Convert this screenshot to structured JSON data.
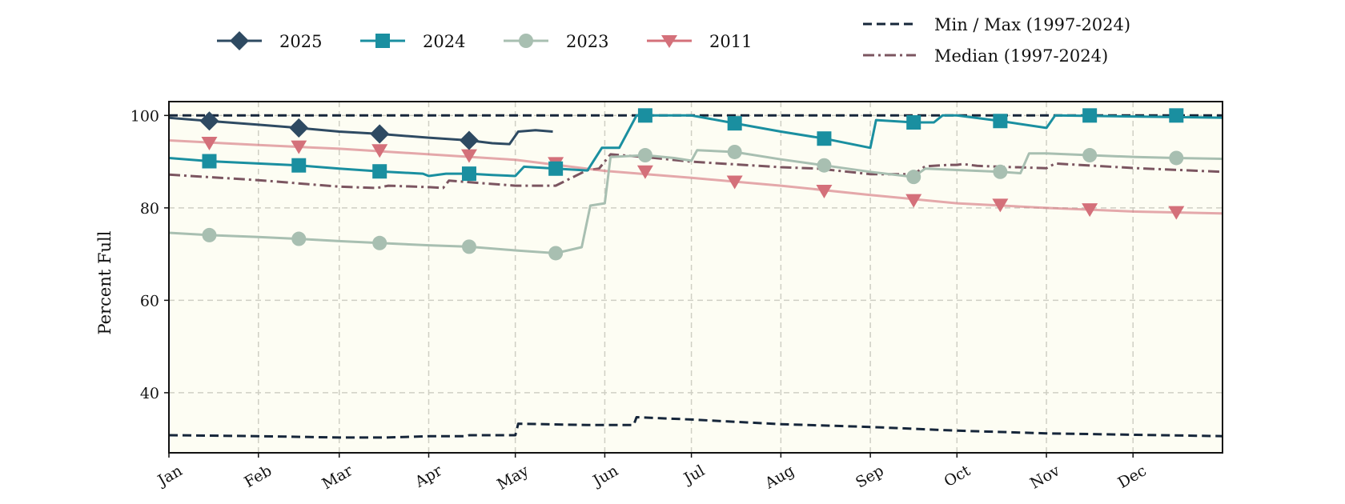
{
  "chart_data": {
    "type": "line",
    "title": "",
    "xlabel": "",
    "ylabel": "Percent Full",
    "ylim": [
      27,
      103
    ],
    "x_range": [
      0,
      365
    ],
    "y_ticks": [
      40,
      60,
      80,
      100
    ],
    "x_tick_labels": [
      "Jan",
      "Feb",
      "Mar",
      "Apr",
      "May",
      "Jun",
      "Jul",
      "Aug",
      "Sep",
      "Oct",
      "Nov",
      "Dec"
    ],
    "x_tick_days": [
      0,
      31,
      59,
      90,
      120,
      151,
      181,
      212,
      243,
      273,
      304,
      334
    ],
    "grid": true,
    "background_color": "#fdfdf3",
    "legend": {
      "placement": "top",
      "entries": [
        {
          "name": "2025",
          "color": "#2e4a62",
          "marker": "diamond",
          "style": "solid"
        },
        {
          "name": "2024",
          "color": "#1a8fa0",
          "marker": "square",
          "style": "solid"
        },
        {
          "name": "2023",
          "color": "#a8bfb1",
          "marker": "circle",
          "style": "solid"
        },
        {
          "name": "2011",
          "color": "#d4707a",
          "marker": "triangle-down",
          "style": "solid"
        },
        {
          "name": "Min / Max (1997-2024)",
          "color": "#16263a",
          "style": "dashed"
        },
        {
          "name": "Median (1997-2024)",
          "color": "#7b5560",
          "style": "dashdot"
        }
      ]
    },
    "series": [
      {
        "name": "2025",
        "color": "#2e4a62",
        "marker": "diamond",
        "points": [
          [
            0,
            99.5
          ],
          [
            14,
            98.8
          ],
          [
            31,
            98.0
          ],
          [
            45,
            97.3
          ],
          [
            59,
            96.5
          ],
          [
            73,
            96.0
          ],
          [
            90,
            95.2
          ],
          [
            104,
            94.6
          ],
          [
            112,
            94.0
          ],
          [
            118,
            93.8
          ],
          [
            121,
            96.5
          ],
          [
            127,
            96.8
          ],
          [
            133,
            96.5
          ]
        ],
        "markers": [
          [
            14,
            98.8
          ],
          [
            45,
            97.3
          ],
          [
            73,
            96.0
          ],
          [
            104,
            94.6
          ]
        ]
      },
      {
        "name": "2024",
        "color": "#1a8fa0",
        "marker": "square",
        "points": [
          [
            0,
            90.8
          ],
          [
            14,
            90.1
          ],
          [
            31,
            89.6
          ],
          [
            45,
            89.2
          ],
          [
            59,
            88.5
          ],
          [
            73,
            87.9
          ],
          [
            88,
            87.4
          ],
          [
            90,
            86.9
          ],
          [
            96,
            87.4
          ],
          [
            104,
            87.4
          ],
          [
            112,
            87.1
          ],
          [
            120,
            86.9
          ],
          [
            123,
            88.9
          ],
          [
            134,
            88.5
          ],
          [
            145,
            88.1
          ],
          [
            150,
            93.0
          ],
          [
            156,
            93.0
          ],
          [
            162,
            100.0
          ],
          [
            181,
            100.0
          ],
          [
            196,
            98.3
          ],
          [
            212,
            96.5
          ],
          [
            227,
            95.0
          ],
          [
            243,
            93.0
          ],
          [
            245,
            99.0
          ],
          [
            258,
            98.5
          ],
          [
            265,
            98.5
          ],
          [
            268,
            100.0
          ],
          [
            273,
            100.0
          ],
          [
            288,
            98.8
          ],
          [
            304,
            97.3
          ],
          [
            307,
            100.0
          ],
          [
            365,
            99.5
          ]
        ],
        "markers": [
          [
            14,
            90.1
          ],
          [
            45,
            89.2
          ],
          [
            73,
            87.9
          ],
          [
            104,
            87.4
          ],
          [
            134,
            88.5
          ],
          [
            165,
            100.0
          ],
          [
            196,
            98.3
          ],
          [
            227,
            95.0
          ],
          [
            258,
            98.5
          ],
          [
            288,
            98.8
          ],
          [
            319,
            100.0
          ],
          [
            349,
            100.0
          ]
        ]
      },
      {
        "name": "2023",
        "color": "#a8bfb1",
        "marker": "circle",
        "points": [
          [
            0,
            74.6
          ],
          [
            14,
            74.1
          ],
          [
            31,
            73.7
          ],
          [
            45,
            73.3
          ],
          [
            59,
            72.8
          ],
          [
            73,
            72.4
          ],
          [
            90,
            71.9
          ],
          [
            104,
            71.6
          ],
          [
            120,
            70.8
          ],
          [
            134,
            70.2
          ],
          [
            143,
            71.5
          ],
          [
            146,
            80.5
          ],
          [
            151,
            81.0
          ],
          [
            153,
            91.0
          ],
          [
            165,
            91.4
          ],
          [
            175,
            90.8
          ],
          [
            181,
            90.2
          ],
          [
            183,
            92.5
          ],
          [
            196,
            92.1
          ],
          [
            212,
            90.5
          ],
          [
            227,
            89.2
          ],
          [
            243,
            87.8
          ],
          [
            258,
            86.7
          ],
          [
            262,
            88.5
          ],
          [
            273,
            88.2
          ],
          [
            288,
            87.8
          ],
          [
            295,
            87.5
          ],
          [
            298,
            91.8
          ],
          [
            304,
            91.8
          ],
          [
            319,
            91.4
          ],
          [
            335,
            91.0
          ],
          [
            349,
            90.8
          ],
          [
            365,
            90.6
          ]
        ],
        "markers": [
          [
            14,
            74.1
          ],
          [
            45,
            73.3
          ],
          [
            73,
            72.4
          ],
          [
            104,
            71.6
          ],
          [
            134,
            70.2
          ],
          [
            165,
            91.4
          ],
          [
            196,
            92.1
          ],
          [
            227,
            89.2
          ],
          [
            258,
            86.7
          ],
          [
            288,
            87.8
          ],
          [
            319,
            91.4
          ],
          [
            349,
            90.8
          ]
        ]
      },
      {
        "name": "2011",
        "color": "#d4707a",
        "marker": "triangle-down",
        "points": [
          [
            0,
            94.6
          ],
          [
            31,
            93.6
          ],
          [
            59,
            92.8
          ],
          [
            90,
            91.6
          ],
          [
            120,
            90.4
          ],
          [
            151,
            88.0
          ],
          [
            181,
            86.5
          ],
          [
            212,
            84.8
          ],
          [
            243,
            82.8
          ],
          [
            273,
            81.0
          ],
          [
            304,
            80.0
          ],
          [
            335,
            79.2
          ],
          [
            365,
            78.8
          ]
        ],
        "markers": [
          [
            14,
            94.0
          ],
          [
            45,
            93.2
          ],
          [
            73,
            92.4
          ],
          [
            104,
            91.3
          ],
          [
            134,
            89.6
          ],
          [
            165,
            87.8
          ],
          [
            196,
            85.6
          ],
          [
            227,
            83.6
          ],
          [
            258,
            81.6
          ],
          [
            288,
            80.6
          ],
          [
            319,
            79.6
          ],
          [
            349,
            79.0
          ]
        ]
      },
      {
        "name": "Median (1997-2024)",
        "color": "#7b5560",
        "style": "dashdot",
        "points": [
          [
            0,
            87.2
          ],
          [
            31,
            86.0
          ],
          [
            59,
            84.6
          ],
          [
            72,
            84.3
          ],
          [
            76,
            84.8
          ],
          [
            90,
            84.5
          ],
          [
            95,
            84.3
          ],
          [
            97,
            85.9
          ],
          [
            120,
            84.8
          ],
          [
            134,
            84.8
          ],
          [
            145,
            88.2
          ],
          [
            149,
            88.5
          ],
          [
            153,
            91.6
          ],
          [
            165,
            91.0
          ],
          [
            181,
            90.0
          ],
          [
            212,
            88.8
          ],
          [
            225,
            88.5
          ],
          [
            243,
            87.3
          ],
          [
            258,
            87.3
          ],
          [
            262,
            89.0
          ],
          [
            270,
            89.3
          ],
          [
            273,
            89.3
          ],
          [
            275,
            89.5
          ],
          [
            280,
            89.1
          ],
          [
            288,
            88.9
          ],
          [
            304,
            88.6
          ],
          [
            307,
            89.6
          ],
          [
            335,
            88.6
          ],
          [
            365,
            87.8
          ]
        ]
      },
      {
        "name": "Max (1997-2024)",
        "color": "#16263a",
        "style": "dashed",
        "points": [
          [
            0,
            100.0
          ],
          [
            365,
            100.0
          ]
        ]
      },
      {
        "name": "Min (1997-2024)",
        "color": "#16263a",
        "style": "dashed",
        "points": [
          [
            0,
            30.8
          ],
          [
            31,
            30.6
          ],
          [
            59,
            30.3
          ],
          [
            75,
            30.3
          ],
          [
            80,
            30.4
          ],
          [
            90,
            30.6
          ],
          [
            103,
            30.6
          ],
          [
            104,
            30.8
          ],
          [
            120,
            30.8
          ],
          [
            121,
            33.3
          ],
          [
            145,
            33.0
          ],
          [
            150,
            33.0
          ],
          [
            161,
            33.0
          ],
          [
            162,
            34.7
          ],
          [
            181,
            34.2
          ],
          [
            212,
            33.2
          ],
          [
            243,
            32.6
          ],
          [
            273,
            31.8
          ],
          [
            304,
            31.2
          ],
          [
            335,
            30.9
          ],
          [
            365,
            30.6
          ]
        ]
      }
    ]
  }
}
